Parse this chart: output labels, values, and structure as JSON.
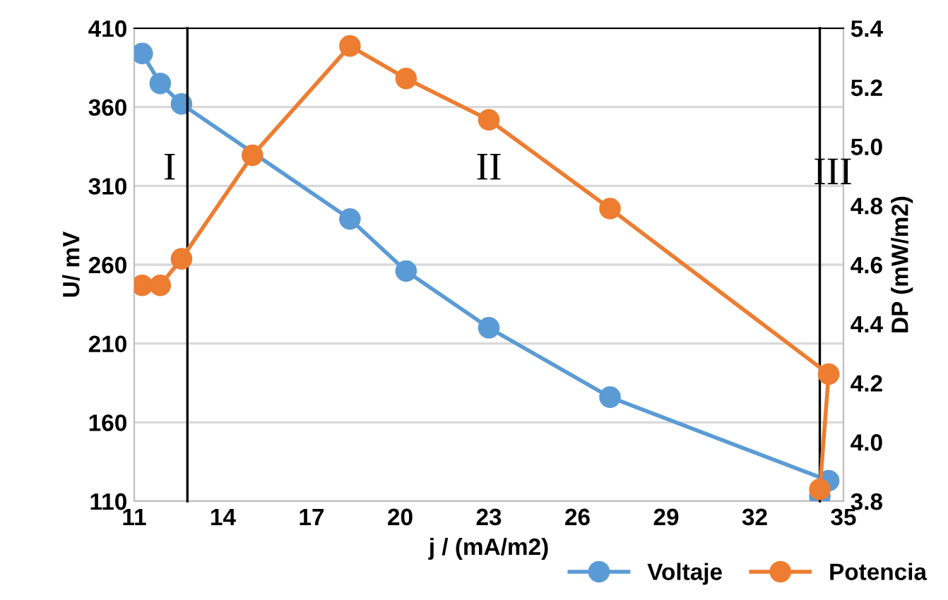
{
  "chart_data": {
    "type": "line",
    "xlabel": "j / (mA/m2)",
    "ylabel": "U/ mV",
    "y2label": "DP (mW/m2)",
    "series": [
      {
        "name": "Voltaje",
        "color": "#5b9bd5",
        "x": [
          11.27,
          11.88,
          12.6,
          18.3,
          20.2,
          23.0,
          27.1,
          34.5,
          34.2
        ],
        "values": [
          394,
          375,
          362,
          289,
          256,
          220,
          176,
          123,
          113
        ]
      },
      {
        "name": "Potencia",
        "color": "#ed7d31",
        "axis": "y2",
        "x": [
          11.27,
          11.88,
          12.6,
          15.0,
          18.3,
          20.2,
          23.0,
          27.1,
          34.5,
          34.2
        ],
        "values": [
          4.53,
          4.53,
          4.62,
          4.97,
          5.34,
          5.23,
          5.09,
          4.79,
          4.23,
          3.84
        ]
      }
    ],
    "xlim": [
      11,
      35
    ],
    "xticks": [
      11,
      14,
      17,
      20,
      23,
      26,
      29,
      32,
      35
    ],
    "ylim": [
      110,
      410
    ],
    "yticks": [
      110,
      160,
      210,
      260,
      310,
      360,
      410
    ],
    "y2lim": [
      3.8,
      5.4
    ],
    "y2ticks": [
      {
        "value": 3.8,
        "label": "3.8"
      },
      {
        "value": 4.0,
        "label": "4.0"
      },
      {
        "value": 4.2,
        "label": "4.2"
      },
      {
        "value": 4.4,
        "label": "4.4"
      },
      {
        "value": 4.6,
        "label": "4.6"
      },
      {
        "value": 4.8,
        "label": "4.8"
      },
      {
        "value": 5.0,
        "label": "5.0"
      },
      {
        "value": 5.2,
        "label": "5.2"
      },
      {
        "value": 5.4,
        "label": "5.4"
      }
    ],
    "ref_lines": [
      {
        "axis": "x",
        "value": 12.8,
        "color": "#000000"
      },
      {
        "axis": "x",
        "value": 34.2,
        "color": "#000000"
      }
    ],
    "annotations": [
      "I",
      "II",
      "III"
    ],
    "marker": "circle",
    "line_style": "solid",
    "grid": "y",
    "legend": "bottom right"
  }
}
